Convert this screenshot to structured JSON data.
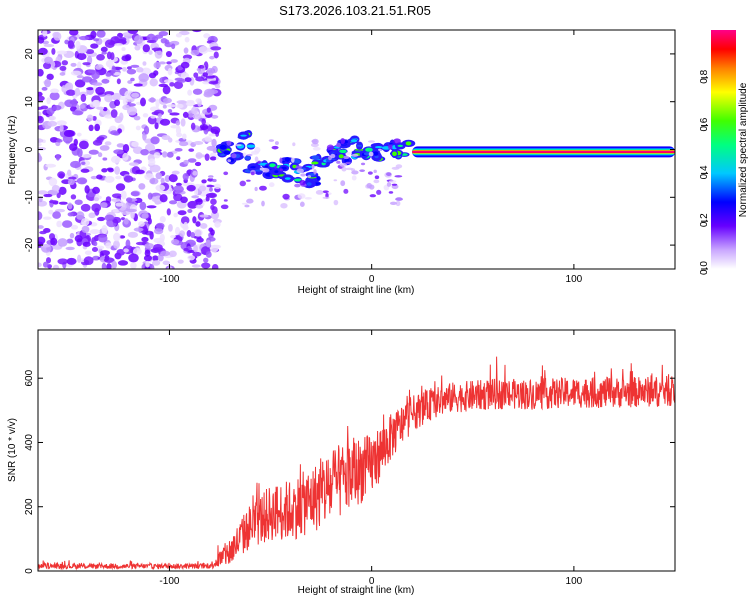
{
  "chart_data": [
    {
      "type": "heatmap",
      "title": "S173.2026.103.21.51.R05",
      "xlabel": "Height of straight line (km)",
      "ylabel": "Frequency (Hz)",
      "xlim": [
        -165,
        150
      ],
      "ylim": [
        -25,
        25
      ],
      "xticks": [
        -100,
        0,
        100
      ],
      "yticks": [
        -20,
        -10,
        0,
        10,
        20
      ],
      "colorbar": {
        "label": "Normalized spectral amplitude",
        "range": [
          0,
          1
        ],
        "ticks": [
          0.0,
          0.2,
          0.4,
          0.6,
          0.8
        ]
      },
      "description_regions": {
        "noise_region_x": [
          -165,
          -80
        ],
        "signal_line_freq_hz": -0.5,
        "strong_signal_x": [
          20,
          150
        ]
      }
    },
    {
      "type": "line",
      "xlabel": "Height of straight line (km)",
      "ylabel": "SNR (10 * v/v)",
      "xlim": [
        -165,
        150
      ],
      "ylim": [
        0,
        750
      ],
      "xticks": [
        -100,
        0,
        100
      ],
      "yticks": [
        0,
        200,
        400,
        600
      ],
      "color": "#ee3333",
      "envelope": {
        "x": [
          -165,
          -80,
          -70,
          -60,
          -50,
          -40,
          -30,
          -20,
          -10,
          0,
          10,
          20,
          30,
          40,
          60,
          80,
          100,
          120,
          150
        ],
        "mean": [
          15,
          15,
          60,
          140,
          180,
          190,
          220,
          260,
          300,
          330,
          420,
          490,
          520,
          540,
          550,
          550,
          555,
          555,
          560
        ],
        "spread": [
          10,
          10,
          60,
          90,
          110,
          120,
          130,
          150,
          140,
          120,
          90,
          70,
          60,
          60,
          60,
          60,
          60,
          60,
          60
        ]
      }
    }
  ]
}
